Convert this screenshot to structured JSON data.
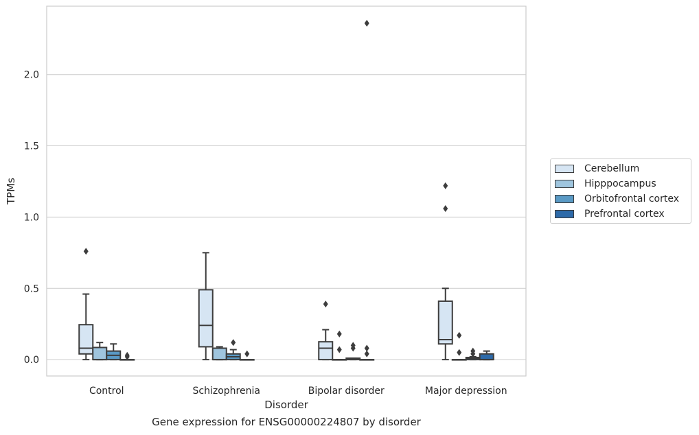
{
  "chart_data": {
    "type": "box",
    "xlabel": "Disorder",
    "ylabel": "TPMs",
    "caption": "Gene expression for ENSG00000224807 by disorder",
    "ylim": [
      -0.115,
      2.48
    ],
    "yticks": [
      0.0,
      0.5,
      1.0,
      1.5,
      2.0
    ],
    "ytick_labels": [
      "0.0",
      "0.5",
      "1.0",
      "1.5",
      "2.0"
    ],
    "categories": [
      "Control",
      "Schizophrenia",
      "Bipolar disorder",
      "Major depression"
    ],
    "grid": "horizontal",
    "legend_position": "right",
    "series": [
      {
        "name": "Cerebellum",
        "color": "#d6e5f3",
        "boxes": [
          {
            "whislo": 0.0,
            "q1": 0.04,
            "med": 0.08,
            "q3": 0.245,
            "whishi": 0.46,
            "fliers": [
              0.76
            ]
          },
          {
            "whislo": 0.0,
            "q1": 0.09,
            "med": 0.24,
            "q3": 0.49,
            "whishi": 0.75,
            "fliers": []
          },
          {
            "whislo": 0.0,
            "q1": 0.0,
            "med": 0.08,
            "q3": 0.125,
            "whishi": 0.21,
            "fliers": [
              0.39
            ]
          },
          {
            "whislo": 0.0,
            "q1": 0.11,
            "med": 0.14,
            "q3": 0.41,
            "whishi": 0.5,
            "fliers": [
              1.06,
              1.22
            ]
          }
        ]
      },
      {
        "name": "Hipppocampus",
        "color": "#9fc5de",
        "boxes": [
          {
            "whislo": 0.0,
            "q1": 0.0,
            "med": 0.0,
            "q3": 0.085,
            "whishi": 0.12,
            "fliers": []
          },
          {
            "whislo": 0.0,
            "q1": 0.0,
            "med": 0.0,
            "q3": 0.08,
            "whishi": 0.09,
            "fliers": []
          },
          {
            "whislo": 0.0,
            "q1": 0.0,
            "med": 0.0,
            "q3": 0.0,
            "whishi": 0.0,
            "fliers": [
              0.07,
              0.18
            ]
          },
          {
            "whislo": 0.0,
            "q1": 0.0,
            "med": 0.0,
            "q3": 0.0,
            "whishi": 0.0,
            "fliers": [
              0.05,
              0.17
            ]
          }
        ]
      },
      {
        "name": "Orbitofrontal cortex",
        "color": "#5a9ac5",
        "boxes": [
          {
            "whislo": 0.0,
            "q1": 0.0,
            "med": 0.03,
            "q3": 0.06,
            "whishi": 0.11,
            "fliers": []
          },
          {
            "whislo": 0.0,
            "q1": 0.0,
            "med": 0.02,
            "q3": 0.04,
            "whishi": 0.07,
            "fliers": [
              0.12
            ]
          },
          {
            "whislo": 0.0,
            "q1": 0.0,
            "med": 0.005,
            "q3": 0.01,
            "whishi": 0.01,
            "fliers": [
              0.08,
              0.1
            ]
          },
          {
            "whislo": 0.0,
            "q1": 0.0,
            "med": 0.01,
            "q3": 0.015,
            "whishi": 0.02,
            "fliers": [
              0.04,
              0.06
            ]
          }
        ]
      },
      {
        "name": "Prefrontal cortex",
        "color": "#2d6aa9",
        "boxes": [
          {
            "whislo": 0.0,
            "q1": 0.0,
            "med": 0.0,
            "q3": 0.0,
            "whishi": 0.0,
            "fliers": [
              0.02,
              0.03
            ]
          },
          {
            "whislo": 0.0,
            "q1": 0.0,
            "med": 0.0,
            "q3": 0.0,
            "whishi": 0.0,
            "fliers": [
              0.04
            ]
          },
          {
            "whislo": 0.0,
            "q1": 0.0,
            "med": 0.0,
            "q3": 0.0,
            "whishi": 0.0,
            "fliers": [
              0.04,
              0.08,
              2.36
            ]
          },
          {
            "whislo": 0.0,
            "q1": 0.0,
            "med": 0.0,
            "q3": 0.04,
            "whishi": 0.06,
            "fliers": []
          }
        ]
      }
    ]
  }
}
